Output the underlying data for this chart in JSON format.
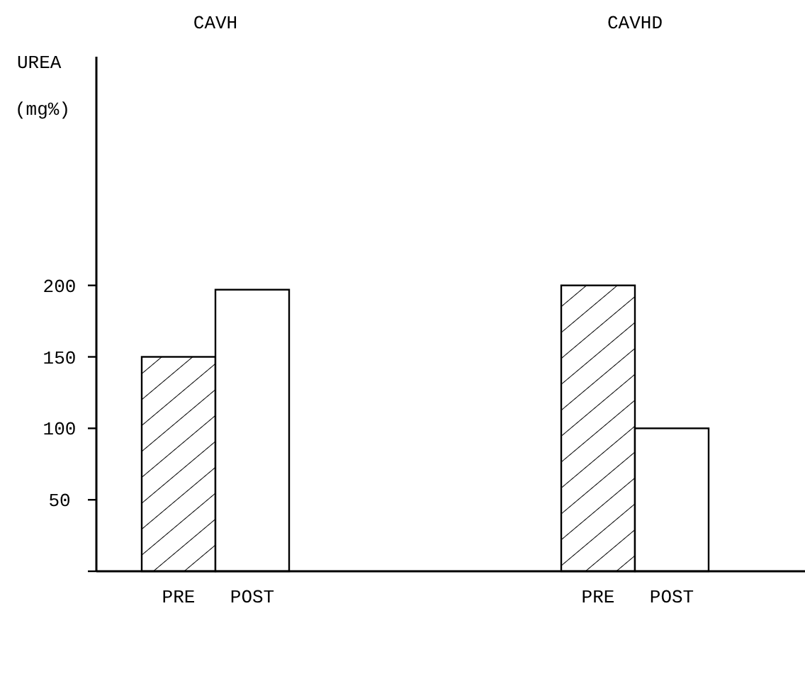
{
  "chart_data": {
    "type": "bar",
    "ylabel": "UREA (mg%)",
    "categories": [
      "CAVH",
      "CAVHD"
    ],
    "series": [
      {
        "name": "PRE",
        "color": "#000000",
        "values": [
          150,
          200
        ]
      },
      {
        "name": "POST",
        "color": "#ffffff",
        "values": [
          197,
          100
        ]
      }
    ],
    "ylim": [
      0,
      360
    ],
    "yticks": [
      {
        "value": 0,
        "label": null
      },
      50,
      100,
      150,
      200
    ],
    "grid": false
  }
}
